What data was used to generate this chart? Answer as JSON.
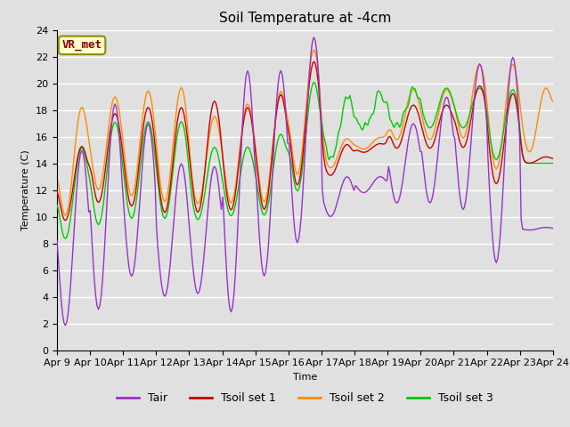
{
  "title": "Soil Temperature at -4cm",
  "xlabel": "Time",
  "ylabel": "Temperature (C)",
  "ylim": [
    0,
    24
  ],
  "yticks": [
    0,
    2,
    4,
    6,
    8,
    10,
    12,
    14,
    16,
    18,
    20,
    22,
    24
  ],
  "xtick_labels": [
    "Apr 9",
    "Apr 10",
    "Apr 11",
    "Apr 12",
    "Apr 13",
    "Apr 14",
    "Apr 15",
    "Apr 16",
    "Apr 17",
    "Apr 18",
    "Apr 19",
    "Apr 20",
    "Apr 21",
    "Apr 22",
    "Apr 23",
    "Apr 24"
  ],
  "colors": {
    "Tair": "#9932CC",
    "Tsoil1": "#CC0000",
    "Tsoil2": "#FF8C00",
    "Tsoil3": "#00CC00"
  },
  "legend_labels": [
    "Tair",
    "Tsoil set 1",
    "Tsoil set 2",
    "Tsoil set 3"
  ],
  "annotation_text": "VR_met",
  "annotation_color": "#8B0000",
  "annotation_bg": "#FFFFCC",
  "bg_color": "#E0E0E0",
  "plot_bg": "#E0E0E0",
  "grid_color": "#FFFFFF",
  "title_fontsize": 11,
  "axis_fontsize": 8,
  "legend_fontsize": 9
}
